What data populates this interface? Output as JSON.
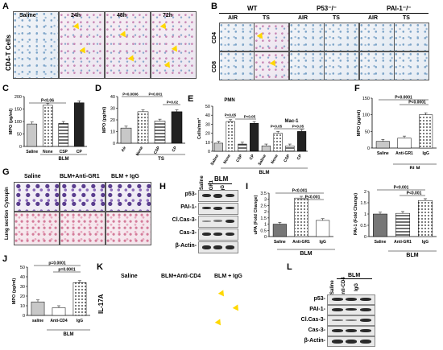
{
  "panels": {
    "A": {
      "label": "A",
      "ylabel": "CD4-T Cells",
      "conditions": [
        "Saline",
        "24h",
        "48h",
        "72h"
      ]
    },
    "B": {
      "label": "B",
      "groups": [
        "WT",
        "P53⁻/⁻",
        "PAI-1⁻/⁻"
      ],
      "sub": [
        "AIR",
        "TS",
        "AIR",
        "TS",
        "AIR",
        "TS"
      ],
      "rows": [
        "CD4",
        "CD8"
      ]
    },
    "C": {
      "label": "C",
      "chart_data": {
        "type": "bar",
        "categories": [
          "Saline",
          "None",
          "CSP",
          "CP"
        ],
        "values": [
          90,
          165,
          92,
          175
        ],
        "ylim": [
          0,
          200
        ],
        "yticks": [
          0,
          50,
          100,
          150,
          200
        ],
        "ylabel": "MPO (pg/ml)",
        "annotation": "P<0.06",
        "group_label": "BLM"
      }
    },
    "D": {
      "label": "D",
      "chart_data": {
        "type": "bar",
        "categories": [
          "Air",
          "None",
          "CSP",
          "CP"
        ],
        "values": [
          13,
          27,
          19,
          27
        ],
        "ylim": [
          0,
          40
        ],
        "yticks": [
          0,
          10,
          20,
          30,
          40
        ],
        "ylabel": "MPO (pg/ml)",
        "annotations": [
          "P<0.0006",
          "P<0.001",
          "P<0.02"
        ],
        "group_label": "TS"
      }
    },
    "E": {
      "label": "E",
      "chart_data": {
        "type": "bar",
        "categories": [
          "Saline",
          "None",
          "CSP",
          "CP",
          "Saline",
          "None",
          "CSP",
          "CP"
        ],
        "values": [
          9,
          33,
          8,
          31,
          6,
          20,
          6,
          22
        ],
        "ylim": [
          0,
          50
        ],
        "yticks": [
          0,
          10,
          20,
          30,
          40,
          50
        ],
        "ylabel": "Cells/mm²",
        "series_labels": [
          "PMN",
          "Mac-1"
        ],
        "annotations": [
          "P<0.05",
          "P<0.05",
          "P<0.05",
          "P<0.05"
        ],
        "group_label": "BLM"
      }
    },
    "F": {
      "label": "F",
      "chart_data": {
        "type": "bar",
        "categories": [
          "Saline",
          "Anti-GR1",
          "IgG"
        ],
        "values": [
          20,
          30,
          100
        ],
        "ylim": [
          0,
          150
        ],
        "yticks": [
          0,
          50,
          100,
          150
        ],
        "ylabel": "MPO (pg/ml)",
        "annotations": [
          "P<0.0001",
          "P<0.0001"
        ],
        "group_label": "BLM"
      }
    },
    "G": {
      "label": "G",
      "cols": [
        "Saline",
        "BLM+Anti-GR1",
        "BLM + IgG"
      ],
      "rows": [
        "Cytospin",
        "Lung section"
      ]
    },
    "H": {
      "label": "H",
      "header": "BLM",
      "lanes": [
        "Saline",
        "Anti-GR1",
        "IgG"
      ],
      "rows": [
        "p53-",
        "PAI-1-",
        "Cl.Cas-3-",
        "Cas-3-",
        "β-Actin-"
      ]
    },
    "I": {
      "label": "I",
      "chart_data": [
        {
          "type": "bar",
          "categories": [
            "Saline",
            "Anti-GR1",
            "IgG"
          ],
          "values": [
            1.0,
            3.1,
            1.3
          ],
          "ylim": [
            0,
            3.5
          ],
          "yticks": [
            0,
            0.5,
            1,
            1.5,
            2,
            2.5,
            3,
            3.5
          ],
          "ylabel": "uPA (Fold Change)",
          "annotations": [
            "P<0.001",
            "P<0.001"
          ],
          "group_label": "BLM"
        },
        {
          "type": "bar",
          "categories": [
            "Saline",
            "Anti-GR1",
            "IgG"
          ],
          "values": [
            1.0,
            1.03,
            1.6
          ],
          "ylim": [
            0,
            2
          ],
          "yticks": [
            0,
            0.5,
            1,
            1.5,
            2
          ],
          "ylabel": "PAI-1 (Fold Change)",
          "annotations": [
            "P<0.001",
            "P<0.001"
          ],
          "group_label": "BLM"
        }
      ]
    },
    "J": {
      "label": "J",
      "chart_data": {
        "type": "bar",
        "categories": [
          "saline",
          "Anti-CD4",
          "IgG"
        ],
        "values": [
          14,
          8,
          34
        ],
        "ylim": [
          0,
          50
        ],
        "yticks": [
          0,
          10,
          20,
          30,
          40,
          50
        ],
        "ylabel": "MPO (pg/ml)",
        "annotations": [
          "p=0.0001",
          "p=0.0001"
        ],
        "group_label": "BLM"
      }
    },
    "K": {
      "label": "K",
      "ylabel": "IL-17A",
      "cols": [
        "Saline",
        "BLM+Anti-CD4",
        "BLM + IgG"
      ]
    },
    "L": {
      "label": "L",
      "header": "BLM",
      "lanes": [
        "Saline",
        "Anti-CD4",
        "IgG"
      ],
      "rows": [
        "p53-",
        "PAI-1-",
        "Cl.Cas-3-",
        "Cas-3-",
        "β-Actin-"
      ]
    }
  }
}
